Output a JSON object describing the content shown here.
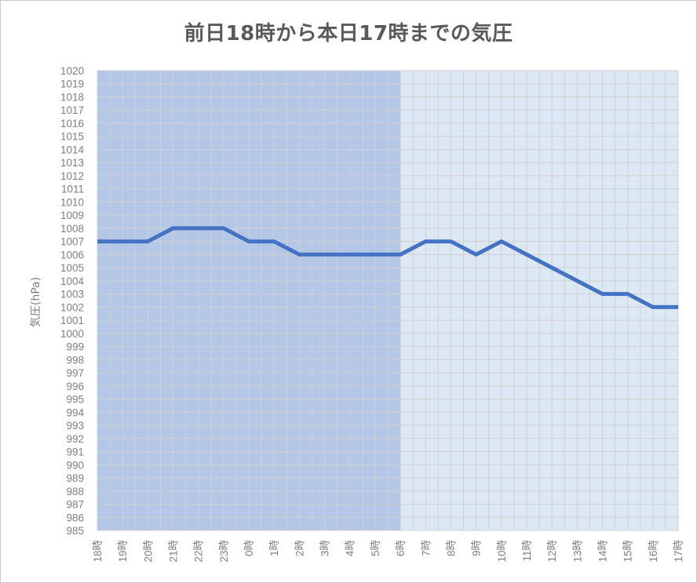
{
  "chart_data": {
    "type": "line",
    "title": "前日18時から本日17時までの気圧",
    "ylabel": "気圧(hPa)",
    "xlabel": "",
    "ylim": [
      985,
      1020
    ],
    "y_step": 1,
    "grid": true,
    "legend": "none",
    "categories": [
      "18時",
      "19時",
      "20時",
      "21時",
      "22時",
      "23時",
      "0時",
      "1時",
      "2時",
      "3時",
      "4時",
      "5時",
      "6時",
      "7時",
      "8時",
      "9時",
      "10時",
      "11時",
      "12時",
      "13時",
      "14時",
      "15時",
      "16時",
      "17時"
    ],
    "series": [
      {
        "values": [
          1007,
          1007,
          1007,
          1008,
          1008,
          1008,
          1007,
          1007,
          1006,
          1006,
          1006,
          1006,
          1006,
          1007,
          1007,
          1006,
          1007,
          1006,
          1005,
          1004,
          1003,
          1003,
          1002,
          1002
        ]
      }
    ],
    "shaded_regions": [
      {
        "from": "18時",
        "to": "6時",
        "color": "#b4c7e7"
      },
      {
        "from": "6時",
        "to": "17時",
        "color": "#dde8f5"
      }
    ],
    "line_color": "#4472c4",
    "grid_color": "#d0d0d0"
  }
}
